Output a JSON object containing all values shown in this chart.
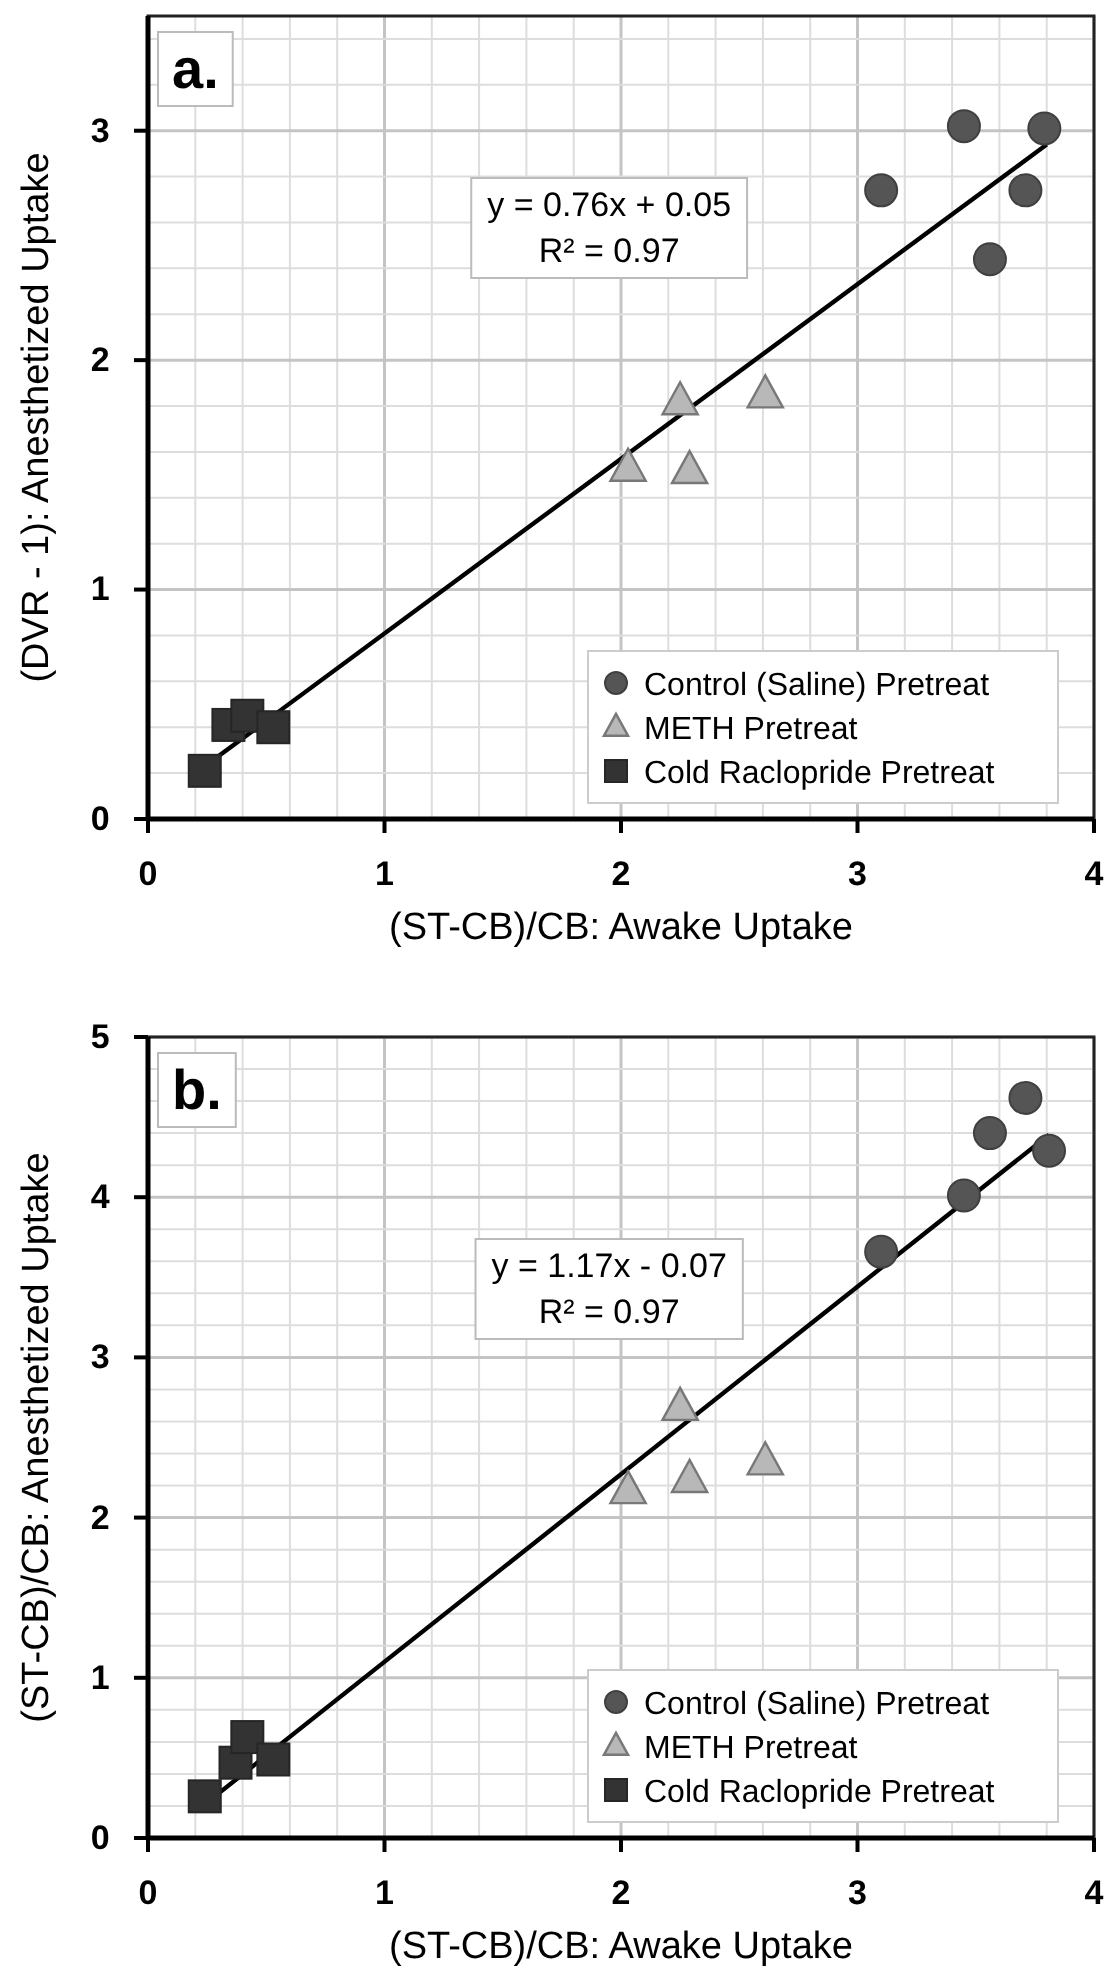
{
  "chart_data": [
    {
      "type": "scatter",
      "title": "a.",
      "xlabel": "(ST-CB)/CB: Awake Uptake",
      "ylabel": "(DVR - 1): Anesthetized Uptake",
      "xlim": [
        0,
        4
      ],
      "ylim": [
        0,
        3.5
      ],
      "xticks": [
        0,
        {
          "value": 0.2,
          "label": null
        },
        {
          "value": 0.4,
          "label": null
        },
        {
          "value": 0.6,
          "label": null
        },
        {
          "value": 0.8,
          "label": null
        },
        1,
        {
          "value": 1.2,
          "label": null
        },
        {
          "value": 1.4,
          "label": null
        },
        {
          "value": 1.6,
          "label": null
        },
        {
          "value": 1.8,
          "label": null
        },
        2,
        {
          "value": 2.2,
          "label": null
        },
        {
          "value": 2.4,
          "label": null
        },
        {
          "value": 2.6,
          "label": null
        },
        {
          "value": 2.8,
          "label": null
        },
        3,
        {
          "value": 3.2,
          "label": null
        },
        {
          "value": 3.4,
          "label": null
        },
        {
          "value": 3.6,
          "label": null
        },
        {
          "value": 3.8,
          "label": null
        },
        4
      ],
      "yticks": [
        0,
        {
          "value": 0.2,
          "label": null
        },
        {
          "value": 0.4,
          "label": null
        },
        {
          "value": 0.6,
          "label": null
        },
        {
          "value": 0.8,
          "label": null
        },
        1,
        {
          "value": 1.2,
          "label": null
        },
        {
          "value": 1.4,
          "label": null
        },
        {
          "value": 1.6,
          "label": null
        },
        {
          "value": 1.8,
          "label": null
        },
        2,
        {
          "value": 2.2,
          "label": null
        },
        {
          "value": 2.4,
          "label": null
        },
        {
          "value": 2.6,
          "label": null
        },
        {
          "value": 2.8,
          "label": null
        },
        3,
        {
          "value": 3.2,
          "label": null
        },
        {
          "value": 3.4,
          "label": null
        }
      ],
      "grid": true,
      "legend": "bottom right",
      "annotations": [
        "y = 0.76x + 0.05",
        "R² = 0.97"
      ],
      "series": [
        {
          "name": "Control (Saline) Pretreat",
          "color": "#555555",
          "marker": "circle",
          "x": [
            3.1,
            3.45,
            3.79,
            3.71,
            3.56
          ],
          "values": [
            2.74,
            3.02,
            3.01,
            2.74,
            2.44
          ]
        },
        {
          "name": "METH Pretreat",
          "color": "#b8b8b8",
          "marker": "triangle",
          "x": [
            2.03,
            2.25,
            2.29,
            2.61
          ],
          "values": [
            1.53,
            1.82,
            1.52,
            1.85
          ]
        },
        {
          "name": "Cold Raclopride Pretreat",
          "color": "#333333",
          "marker": "square",
          "x": [
            0.24,
            0.34,
            0.42,
            0.53
          ],
          "values": [
            0.21,
            0.41,
            0.45,
            0.4
          ]
        },
        {
          "type": "line",
          "color": "#000000",
          "marker": "none",
          "x": [
            0.24,
            3.8
          ],
          "values": [
            0.23,
            2.94
          ]
        }
      ]
    },
    {
      "type": "scatter",
      "title": "b.",
      "xlabel": "(ST-CB)/CB: Awake Uptake",
      "ylabel": "(ST-CB)/CB: Anesthetized Uptake",
      "xlim": [
        0,
        4
      ],
      "ylim": [
        0,
        5
      ],
      "xticks": [
        0,
        {
          "value": 0.2,
          "label": null
        },
        {
          "value": 0.4,
          "label": null
        },
        {
          "value": 0.6,
          "label": null
        },
        {
          "value": 0.8,
          "label": null
        },
        1,
        {
          "value": 1.2,
          "label": null
        },
        {
          "value": 1.4,
          "label": null
        },
        {
          "value": 1.6,
          "label": null
        },
        {
          "value": 1.8,
          "label": null
        },
        2,
        {
          "value": 2.2,
          "label": null
        },
        {
          "value": 2.4,
          "label": null
        },
        {
          "value": 2.6,
          "label": null
        },
        {
          "value": 2.8,
          "label": null
        },
        3,
        {
          "value": 3.2,
          "label": null
        },
        {
          "value": 3.4,
          "label": null
        },
        {
          "value": 3.6,
          "label": null
        },
        {
          "value": 3.8,
          "label": null
        },
        4
      ],
      "yticks": [
        0,
        {
          "value": 0.2,
          "label": null
        },
        {
          "value": 0.4,
          "label": null
        },
        {
          "value": 0.6,
          "label": null
        },
        {
          "value": 0.8,
          "label": null
        },
        1,
        {
          "value": 1.2,
          "label": null
        },
        {
          "value": 1.4,
          "label": null
        },
        {
          "value": 1.6,
          "label": null
        },
        {
          "value": 1.8,
          "label": null
        },
        2,
        {
          "value": 2.2,
          "label": null
        },
        {
          "value": 2.4,
          "label": null
        },
        {
          "value": 2.6,
          "label": null
        },
        {
          "value": 2.8,
          "label": null
        },
        3,
        {
          "value": 3.2,
          "label": null
        },
        {
          "value": 3.4,
          "label": null
        },
        {
          "value": 3.6,
          "label": null
        },
        {
          "value": 3.8,
          "label": null
        },
        4,
        {
          "value": 4.2,
          "label": null
        },
        {
          "value": 4.4,
          "label": null
        },
        {
          "value": 4.6,
          "label": null
        },
        {
          "value": 4.8,
          "label": null
        },
        5
      ],
      "grid": true,
      "legend": "bottom right",
      "annotations": [
        "y = 1.17x - 0.07",
        "R² = 0.97"
      ],
      "series": [
        {
          "name": "Control (Saline) Pretreat",
          "color": "#555555",
          "marker": "circle",
          "x": [
            3.1,
            3.45,
            3.56,
            3.71,
            3.81
          ],
          "values": [
            3.66,
            4.01,
            4.4,
            4.62,
            4.29
          ]
        },
        {
          "name": "METH Pretreat",
          "color": "#b8b8b8",
          "marker": "triangle",
          "x": [
            2.03,
            2.25,
            2.29,
            2.61
          ],
          "values": [
            2.17,
            2.69,
            2.24,
            2.35
          ]
        },
        {
          "name": "Cold Raclopride Pretreat",
          "color": "#333333",
          "marker": "square",
          "x": [
            0.24,
            0.37,
            0.42,
            0.53
          ],
          "values": [
            0.26,
            0.47,
            0.63,
            0.49
          ]
        },
        {
          "type": "line",
          "color": "#000000",
          "marker": "none",
          "x": [
            0.24,
            3.81
          ],
          "values": [
            0.21,
            4.39
          ]
        }
      ]
    }
  ]
}
